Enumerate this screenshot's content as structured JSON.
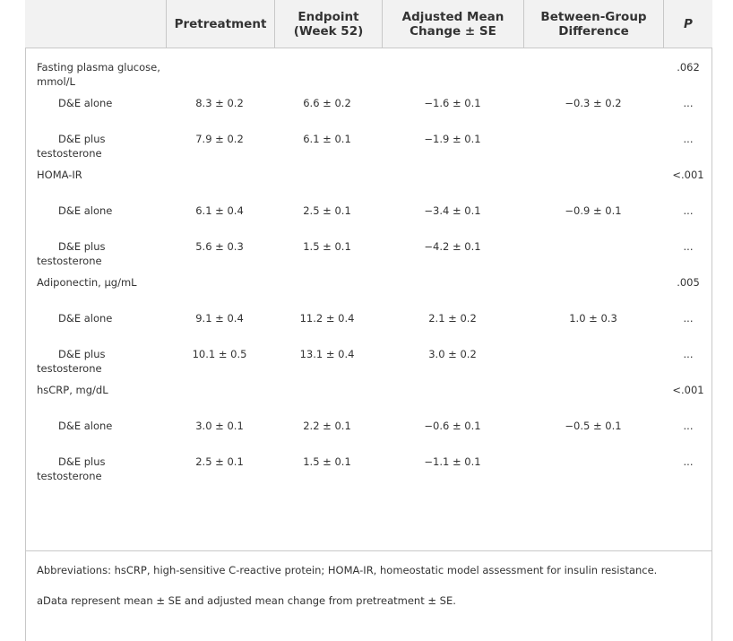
{
  "header": {
    "col0": "",
    "col1": "Pretreatment",
    "col2": "Endpoint\n(Week 52)",
    "col3": "Adjusted Mean\nChange ± SE",
    "col4": "Between-Group\nDifference",
    "col5": "P"
  },
  "rows": [
    {
      "type": "group",
      "label": "Fasting plasma glucose,\nmmol/L",
      "pre": "",
      "end": "",
      "chg": "",
      "diff": "",
      "p": ".062"
    },
    {
      "type": "sub",
      "label": "D&E alone",
      "pre": "8.3 ± 0.2",
      "end": "6.6 ± 0.2",
      "chg": "−1.6 ± 0.1",
      "diff": "−0.3 ± 0.2",
      "p": "..."
    },
    {
      "type": "sub2",
      "label": "D&E plus\ntestosterone",
      "pre": "7.9 ± 0.2",
      "end": "6.1 ± 0.1",
      "chg": "−1.9 ± 0.1",
      "diff": "",
      "p": "..."
    },
    {
      "type": "group",
      "label": "HOMA-IR",
      "pre": "",
      "end": "",
      "chg": "",
      "diff": "",
      "p": "<.001"
    },
    {
      "type": "sub",
      "label": "D&E alone",
      "pre": "6.1 ± 0.4",
      "end": "2.5 ± 0.1",
      "chg": "−3.4 ± 0.1",
      "diff": "−0.9 ± 0.1",
      "p": "..."
    },
    {
      "type": "sub2",
      "label": "D&E plus\ntestosterone",
      "pre": "5.6 ± 0.3",
      "end": "1.5 ± 0.1",
      "chg": "−4.2 ± 0.1",
      "diff": "",
      "p": "..."
    },
    {
      "type": "group",
      "label": "Adiponectin, μg/mL",
      "pre": "",
      "end": "",
      "chg": "",
      "diff": "",
      "p": ".005"
    },
    {
      "type": "sub",
      "label": "D&E alone",
      "pre": "9.1 ± 0.4",
      "end": "11.2 ± 0.4",
      "chg": "2.1 ± 0.2",
      "diff": "1.0 ± 0.3",
      "p": "..."
    },
    {
      "type": "sub2",
      "label": "D&E plus\ntestosterone",
      "pre": "10.1 ± 0.5",
      "end": "13.1 ± 0.4",
      "chg": "3.0 ± 0.2",
      "diff": "",
      "p": "..."
    },
    {
      "type": "group",
      "label": "hsCRP, mg/dL",
      "pre": "",
      "end": "",
      "chg": "",
      "diff": "",
      "p": "<.001"
    },
    {
      "type": "sub",
      "label": "D&E alone",
      "pre": "3.0 ± 0.1",
      "end": "2.2 ± 0.1",
      "chg": "−0.6 ± 0.1",
      "diff": "−0.5 ± 0.1",
      "p": "..."
    },
    {
      "type": "sub2",
      "label": "D&E plus\ntestosterone",
      "pre": "2.5 ± 0.1",
      "end": "1.5 ± 0.1",
      "chg": "−1.1 ± 0.1",
      "diff": "",
      "p": "..."
    }
  ],
  "notes": {
    "abbreviations": "Abbreviations: hsCRP, high-sensitive C-reactive protein; HOMA-IR, homeostatic model assessment for insulin resistance.",
    "footnote_a": "aData represent mean ± SE and adjusted mean change from pretreatment ± SE."
  }
}
